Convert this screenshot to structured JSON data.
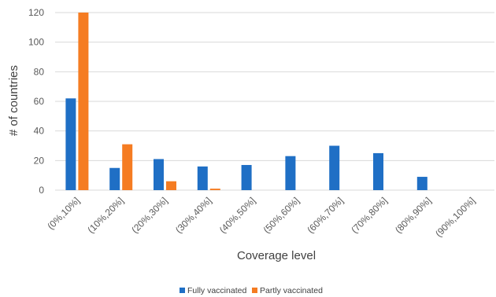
{
  "chart_data": {
    "type": "bar",
    "title": "",
    "xlabel": "Coverage level",
    "ylabel": "# of countries",
    "ylim": [
      0,
      120
    ],
    "yticks": [
      0,
      20,
      40,
      60,
      80,
      100,
      120
    ],
    "grid": true,
    "legend_position": "bottom",
    "categories": [
      "(0%,10%]",
      "(10%,20%]",
      "(20%,30%]",
      "(30%,40%]",
      "(40%,50%]",
      "(50%,60%]",
      "(60%,70%]",
      "(70%,80%]",
      "(80%,90%]",
      "(90%,100%]"
    ],
    "series": [
      {
        "name": "Fully vaccinated",
        "color": "#1f6fc5",
        "values": [
          62,
          15,
          21,
          16,
          17,
          23,
          30,
          25,
          9,
          0
        ]
      },
      {
        "name": "Partly vaccinated",
        "color": "#f57c22",
        "values": [
          120,
          31,
          6,
          1,
          0,
          0,
          0,
          0,
          0,
          0
        ]
      }
    ]
  }
}
